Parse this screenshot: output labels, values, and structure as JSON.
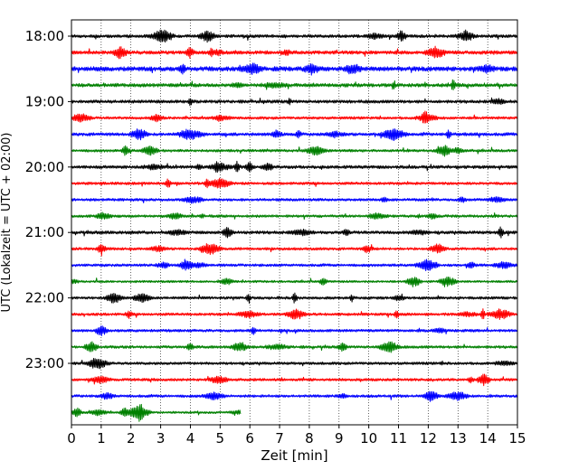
{
  "chart_data": {
    "type": "line",
    "title": "",
    "xlabel": "Zeit  [min]",
    "ylabel": "UTC (Lokalzeit = UTC + 02:00)",
    "xlim": [
      0,
      15
    ],
    "x_ticks": [
      0,
      1,
      2,
      3,
      4,
      5,
      6,
      7,
      8,
      9,
      10,
      11,
      12,
      13,
      14,
      15
    ],
    "x_tick_labels": [
      "0",
      "1",
      "2",
      "3",
      "4",
      "5",
      "6",
      "7",
      "8",
      "9",
      "10",
      "11",
      "12",
      "13",
      "14",
      "15"
    ],
    "y_tick_labels": [
      "18:00",
      "19:00",
      "20:00",
      "21:00",
      "22:00",
      "23:00"
    ],
    "row_interval_min": 15,
    "grid": "vertical-dotted",
    "colors_cycle": [
      "#000000",
      "#ff0000",
      "#0000ff",
      "#008000"
    ],
    "series": [
      {
        "start": "18:00",
        "end_min": 15,
        "color": "#000000",
        "amp": 0.35
      },
      {
        "start": "18:15",
        "end_min": 15,
        "color": "#ff0000",
        "amp": 0.4
      },
      {
        "start": "18:30",
        "end_min": 15,
        "color": "#0000ff",
        "amp": 0.5
      },
      {
        "start": "18:45",
        "end_min": 15,
        "color": "#008000",
        "amp": 0.4
      },
      {
        "start": "19:00",
        "end_min": 15,
        "color": "#000000",
        "amp": 0.35
      },
      {
        "start": "19:15",
        "end_min": 15,
        "color": "#ff0000",
        "amp": 0.3
      },
      {
        "start": "19:30",
        "end_min": 15,
        "color": "#0000ff",
        "amp": 0.35
      },
      {
        "start": "19:45",
        "end_min": 15,
        "color": "#008000",
        "amp": 0.3
      },
      {
        "start": "20:00",
        "end_min": 15,
        "color": "#000000",
        "amp": 0.35
      },
      {
        "start": "20:15",
        "end_min": 15,
        "color": "#ff0000",
        "amp": 0.3
      },
      {
        "start": "20:30",
        "end_min": 15,
        "color": "#0000ff",
        "amp": 0.3
      },
      {
        "start": "20:45",
        "end_min": 15,
        "color": "#008000",
        "amp": 0.3
      },
      {
        "start": "21:00",
        "end_min": 15,
        "color": "#000000",
        "amp": 0.35
      },
      {
        "start": "21:15",
        "end_min": 15,
        "color": "#ff0000",
        "amp": 0.3
      },
      {
        "start": "21:30",
        "end_min": 15,
        "color": "#0000ff",
        "amp": 0.3
      },
      {
        "start": "21:45",
        "end_min": 15,
        "color": "#008000",
        "amp": 0.25
      },
      {
        "start": "22:00",
        "end_min": 15,
        "color": "#000000",
        "amp": 0.3
      },
      {
        "start": "22:15",
        "end_min": 15,
        "color": "#ff0000",
        "amp": 0.3
      },
      {
        "start": "22:30",
        "end_min": 15,
        "color": "#0000ff",
        "amp": 0.3
      },
      {
        "start": "22:45",
        "end_min": 15,
        "color": "#008000",
        "amp": 0.3
      },
      {
        "start": "23:00",
        "end_min": 15,
        "color": "#000000",
        "amp": 0.3
      },
      {
        "start": "23:15",
        "end_min": 15,
        "color": "#ff0000",
        "amp": 0.3
      },
      {
        "start": "23:30",
        "end_min": 15,
        "color": "#0000ff",
        "amp": 0.3
      },
      {
        "start": "23:45",
        "end_min": 5.7,
        "color": "#008000",
        "amp": 0.25
      }
    ]
  }
}
